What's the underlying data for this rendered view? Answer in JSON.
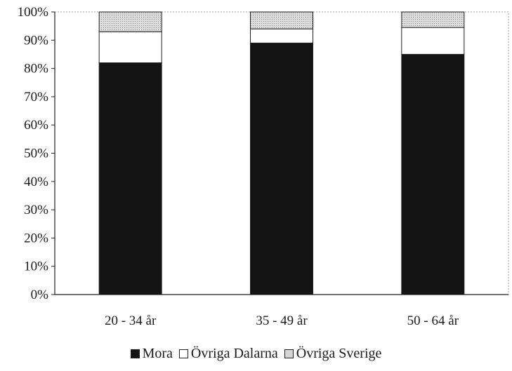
{
  "chart_data": {
    "type": "bar",
    "stacked": true,
    "percent": true,
    "categories": [
      "20 - 34 år",
      "35 - 49 år",
      "50 - 64 år"
    ],
    "series": [
      {
        "name": "Mora",
        "values": [
          82,
          89,
          85
        ],
        "color": "#141414",
        "pattern": "solid"
      },
      {
        "name": "Övriga Dalarna",
        "values": [
          11,
          5,
          9.5
        ],
        "color": "#ffffff",
        "pattern": "solid"
      },
      {
        "name": "Övriga Sverige",
        "values": [
          7,
          6,
          5.5
        ],
        "color": "#d6d6d6",
        "pattern": "dotted"
      }
    ],
    "yticks": [
      "0%",
      "10%",
      "20%",
      "30%",
      "40%",
      "50%",
      "60%",
      "70%",
      "80%",
      "90%",
      "100%"
    ],
    "ylim": [
      0,
      100
    ],
    "grid": false,
    "legend_position": "bottom"
  }
}
